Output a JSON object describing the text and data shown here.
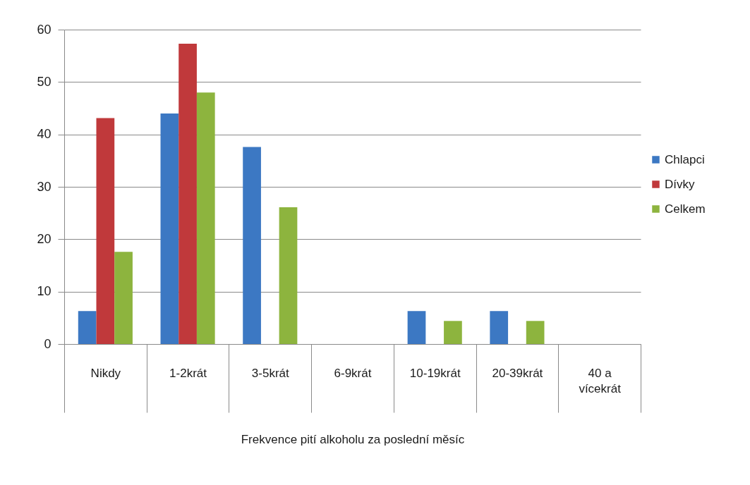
{
  "chart_data": {
    "type": "bar",
    "xlabel": "Frekvence pití alkoholu za poslední měsíc",
    "categories": [
      "Nikdy",
      "1-2krát",
      "3-5krát",
      "6-9krát",
      "10-19krát",
      "20-39krát",
      "40 a vícekrát"
    ],
    "series": [
      {
        "name": "Chlapci",
        "color": "#3c78c3",
        "values": [
          6.3,
          44,
          37.6,
          null,
          6.3,
          6.3,
          null
        ]
      },
      {
        "name": "Dívky",
        "color": "#c0393b",
        "values": [
          43.1,
          57.3,
          null,
          null,
          null,
          null,
          null
        ]
      },
      {
        "name": "Celkem",
        "color": "#8db43e",
        "values": [
          17.6,
          48,
          26.1,
          null,
          4.4,
          4.4,
          null
        ]
      }
    ],
    "ylim": [
      0,
      60
    ],
    "yticks": [
      0,
      10,
      20,
      30,
      40,
      50,
      60
    ],
    "grid": "y",
    "legend": "right"
  }
}
